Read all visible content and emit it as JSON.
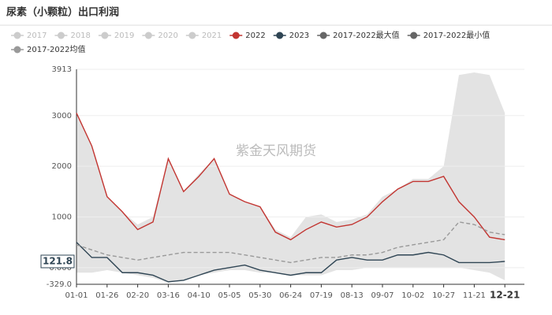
{
  "chart_data": {
    "type": "line",
    "title": "尿素（小颗粒）出口利润",
    "watermark": "紫金天风期货",
    "categories": [
      "01-01",
      null,
      "01-26",
      null,
      "02-20",
      null,
      "03-16",
      null,
      "04-10",
      null,
      "05-05",
      null,
      "05-30",
      null,
      "06-24",
      null,
      "07-19",
      null,
      "08-13",
      null,
      "09-07",
      null,
      "10-02",
      null,
      "10-27",
      null,
      "11-21",
      null,
      "12-21"
    ],
    "series": [
      {
        "name": "2017",
        "color": "#cccccc",
        "visible": false,
        "style": "line",
        "values": [
          null,
          null,
          null,
          null,
          null,
          null,
          null,
          null,
          null,
          null,
          null,
          null,
          null,
          null,
          null,
          null,
          null,
          null,
          null,
          null,
          null,
          null,
          null,
          null,
          null,
          null,
          null,
          null,
          null
        ]
      },
      {
        "name": "2018",
        "color": "#cccccc",
        "visible": false,
        "style": "line",
        "values": [
          null,
          null,
          null,
          null,
          null,
          null,
          null,
          null,
          null,
          null,
          null,
          null,
          null,
          null,
          null,
          null,
          null,
          null,
          null,
          null,
          null,
          null,
          null,
          null,
          null,
          null,
          null,
          null,
          null
        ]
      },
      {
        "name": "2019",
        "color": "#cccccc",
        "visible": false,
        "style": "line",
        "values": [
          null,
          null,
          null,
          null,
          null,
          null,
          null,
          null,
          null,
          null,
          null,
          null,
          null,
          null,
          null,
          null,
          null,
          null,
          null,
          null,
          null,
          null,
          null,
          null,
          null,
          null,
          null,
          null,
          null
        ]
      },
      {
        "name": "2020",
        "color": "#cccccc",
        "visible": false,
        "style": "line",
        "values": [
          null,
          null,
          null,
          null,
          null,
          null,
          null,
          null,
          null,
          null,
          null,
          null,
          null,
          null,
          null,
          null,
          null,
          null,
          null,
          null,
          null,
          null,
          null,
          null,
          null,
          null,
          null,
          null,
          null
        ]
      },
      {
        "name": "2021",
        "color": "#cccccc",
        "visible": false,
        "style": "line",
        "values": [
          null,
          null,
          null,
          null,
          null,
          null,
          null,
          null,
          null,
          null,
          null,
          null,
          null,
          null,
          null,
          null,
          null,
          null,
          null,
          null,
          null,
          null,
          null,
          null,
          null,
          null,
          null,
          null,
          null
        ]
      },
      {
        "name": "2022",
        "color": "#c23531",
        "visible": true,
        "style": "line",
        "values": [
          3050,
          2400,
          1400,
          1100,
          750,
          900,
          2150,
          1500,
          1800,
          2150,
          1450,
          1300,
          1200,
          700,
          550,
          750,
          900,
          800,
          850,
          1000,
          1300,
          1550,
          1700,
          1700,
          1800,
          1300,
          1000,
          600,
          550
        ]
      },
      {
        "name": "2023",
        "color": "#2f4554",
        "visible": true,
        "style": "line",
        "values": [
          500,
          200,
          200,
          -100,
          -100,
          -150,
          -280,
          -250,
          -150,
          -50,
          0,
          50,
          -50,
          -100,
          -150,
          -100,
          -100,
          150,
          200,
          150,
          150,
          250,
          250,
          300,
          250,
          100,
          100,
          100,
          121.8
        ]
      },
      {
        "name": "2017-2022最大值",
        "color": "#666666",
        "visible": true,
        "style": "band",
        "values": [
          3050,
          2400,
          1400,
          1100,
          850,
          1000,
          2150,
          1500,
          1850,
          2150,
          1450,
          1300,
          1200,
          750,
          600,
          1000,
          1050,
          900,
          950,
          1050,
          1400,
          1550,
          1750,
          1750,
          2000,
          3800,
          3850,
          3800,
          3050
        ]
      },
      {
        "name": "2017-2022最小值",
        "color": "#666666",
        "visible": true,
        "style": "band",
        "values": [
          -100,
          -100,
          -50,
          -100,
          -150,
          -200,
          -300,
          -250,
          -150,
          -100,
          -50,
          -50,
          -100,
          -100,
          -150,
          -150,
          -150,
          -50,
          -50,
          0,
          0,
          0,
          0,
          0,
          0,
          0,
          -50,
          -100,
          -250
        ]
      },
      {
        "name": "2017-2022均值",
        "color": "#999999",
        "visible": true,
        "style": "dashed",
        "values": [
          450,
          350,
          250,
          200,
          150,
          200,
          250,
          300,
          300,
          300,
          300,
          250,
          200,
          150,
          100,
          150,
          200,
          200,
          250,
          250,
          300,
          400,
          450,
          500,
          550,
          900,
          850,
          700,
          650
        ]
      }
    ],
    "band_color": "#e3e3e3",
    "current_value": 121.8,
    "ylim": [
      -329,
      3913
    ],
    "yticks": [
      {
        "value": -329,
        "label": "-329.0"
      },
      {
        "value": 0,
        "label": "0.000"
      },
      1000,
      2000,
      3000,
      3913
    ],
    "grid": true
  }
}
